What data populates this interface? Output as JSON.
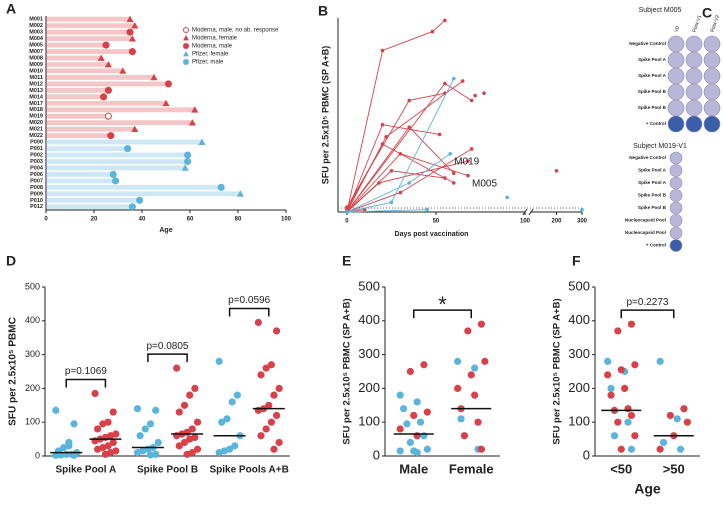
{
  "chart_data": [
    {
      "panel": "A",
      "type": "lollipop",
      "xlabel": "Age",
      "xlim": [
        0,
        100
      ],
      "xticks": [
        0,
        20,
        40,
        60,
        80,
        100
      ],
      "legend": "upper right",
      "categories": [
        "M001",
        "M002",
        "M003",
        "M004",
        "M005",
        "M007",
        "M008",
        "M009",
        "M010",
        "M011",
        "M012",
        "M013",
        "M014",
        "M017",
        "M018",
        "M019",
        "M020",
        "M021",
        "M022",
        "P000",
        "P001",
        "P002",
        "P003",
        "P004",
        "P006",
        "P007",
        "P008",
        "P009",
        "P010",
        "P012"
      ],
      "series": [
        {
          "name": "Moderna, male, no ab. response",
          "color": "#d9414a",
          "marker": "circle-open",
          "values": [
            null,
            null,
            null,
            null,
            null,
            null,
            null,
            null,
            null,
            null,
            null,
            null,
            null,
            null,
            null,
            26,
            null,
            null,
            null,
            null,
            null,
            null,
            null,
            null,
            null,
            null,
            null,
            null,
            null,
            null
          ]
        },
        {
          "name": "Moderna, female",
          "color": "#d9414a",
          "marker": "triangle",
          "values": [
            35,
            37,
            null,
            36,
            null,
            null,
            23,
            26,
            32,
            45,
            null,
            null,
            null,
            50,
            62,
            null,
            61,
            37,
            null,
            null,
            null,
            null,
            null,
            null,
            null,
            null,
            null,
            null,
            null,
            null
          ]
        },
        {
          "name": "Moderna, male",
          "color": "#d9414a",
          "marker": "circle",
          "values": [
            null,
            null,
            35,
            null,
            25,
            36,
            null,
            null,
            null,
            null,
            51,
            26,
            24,
            null,
            null,
            null,
            null,
            null,
            27,
            null,
            null,
            null,
            null,
            null,
            null,
            null,
            null,
            null,
            null,
            null
          ]
        },
        {
          "name": "Pfizer, female",
          "color": "#5ab4dc",
          "marker": "triangle",
          "values": [
            null,
            null,
            null,
            null,
            null,
            null,
            null,
            null,
            null,
            null,
            null,
            null,
            null,
            null,
            null,
            null,
            null,
            null,
            null,
            65,
            null,
            null,
            null,
            58,
            null,
            null,
            null,
            81,
            null,
            null
          ]
        },
        {
          "name": "Pfizer, male",
          "color": "#5ab4dc",
          "marker": "circle",
          "values": [
            null,
            null,
            null,
            null,
            null,
            null,
            null,
            null,
            null,
            null,
            null,
            null,
            null,
            null,
            null,
            null,
            null,
            null,
            null,
            null,
            34,
            59,
            59,
            null,
            28,
            29,
            73,
            null,
            39,
            36
          ]
        }
      ]
    },
    {
      "panel": "B",
      "type": "line",
      "xlabel": "Days post vaccination",
      "ylabel": "SFU per 2.5x10⁵ PBMC (SP A+B)",
      "xlim": [
        -5,
        300
      ],
      "xticks": [
        0,
        50,
        100,
        200,
        300
      ],
      "ylim": [
        0,
        400
      ],
      "series": [
        {
          "color": "#d9414a",
          "x": [
            0,
            20,
            48,
            55
          ],
          "y": [
            0,
            333,
            372,
            395
          ]
        },
        {
          "color": "#d9414a",
          "x": [
            0,
            35,
            55
          ],
          "y": [
            10,
            230,
            245
          ]
        },
        {
          "color": "#d9414a",
          "x": [
            0,
            20,
            52
          ],
          "y": [
            0,
            180,
            160
          ]
        },
        {
          "color": "#d9414a",
          "x": [
            0,
            20,
            60
          ],
          "y": [
            5,
            140,
            60
          ]
        },
        {
          "color": "#d9414a",
          "x": [
            0,
            22,
            65
          ],
          "y": [
            0,
            155,
            270
          ]
        },
        {
          "color": "#d9414a",
          "x": [
            0,
            25,
            55
          ],
          "y": [
            0,
            85,
            70
          ]
        },
        {
          "color": "#d9414a",
          "x": [
            0,
            35,
            60
          ],
          "y": [
            0,
            175,
            80
          ]
        },
        {
          "color": "#d9414a",
          "x": [
            0,
            30,
            70
          ],
          "y": [
            0,
            40,
            130
          ]
        },
        {
          "color": "#d9414a",
          "x": [
            0,
            18,
            68
          ],
          "y": [
            0,
            60,
            105
          ]
        },
        {
          "color": "#d9414a",
          "x": [
            0,
            55,
            70
          ],
          "y": [
            0,
            265,
            230
          ]
        },
        {
          "color": "#d9414a",
          "x": [
            0,
            10
          ],
          "y": [
            0,
            5
          ]
        },
        {
          "color": "#d9414a",
          "x": [
            0,
            30,
            68
          ],
          "y": [
            0,
            120,
            75
          ],
          "label": "M005"
        },
        {
          "color": "#5ab4dc",
          "x": [
            0,
            25,
            60
          ],
          "y": [
            0,
            20,
            275
          ]
        },
        {
          "color": "#5ab4dc",
          "x": [
            0,
            35,
            58
          ],
          "y": [
            0,
            60,
            120
          ],
          "label": "M019"
        },
        {
          "color": "#5ab4dc",
          "x": [
            0,
            45
          ],
          "y": [
            0,
            5
          ]
        },
        {
          "color": "#d9414a",
          "x": [
            200
          ],
          "y": [
            85
          ]
        },
        {
          "color": "#d9414a",
          "x": [
            72
          ],
          "y": [
            240
          ]
        },
        {
          "color": "#d9414a",
          "x": [
            77
          ],
          "y": [
            245
          ]
        },
        {
          "color": "#5ab4dc",
          "x": [
            90
          ],
          "y": [
            30
          ]
        },
        {
          "color": "#5ab4dc",
          "x": [
            300
          ],
          "y": [
            5
          ]
        }
      ]
    },
    {
      "panel": "D",
      "type": "dot",
      "ylabel": "SFU per 2.5x10⁵ PBMC",
      "ylim": [
        0,
        500
      ],
      "yticks": [
        0,
        100,
        200,
        300,
        400,
        500
      ],
      "dodge": true,
      "categories": [
        "Spike Pool A",
        "Spike Pool B",
        "Spike Pools A+B"
      ],
      "p_values": [
        "p=0.1069",
        "p=0.0805",
        "p=0.0596"
      ],
      "series": [
        {
          "color": "#5ab4dc",
          "medians": [
            10,
            25,
            60
          ],
          "values": [
            [
              135,
              95,
              40,
              25,
              15,
              10,
              5,
              5,
              3,
              2,
              2,
              30
            ],
            [
              140,
              135,
              95,
              80,
              60,
              40,
              25,
              20,
              15,
              10,
              5,
              3
            ],
            [
              280,
              180,
              160,
              110,
              100,
              60,
              30,
              20,
              15,
              10
            ]
          ]
        },
        {
          "color": "#d9414a",
          "medians": [
            50,
            65,
            140
          ],
          "values": [
            [
              185,
              130,
              100,
              95,
              80,
              65,
              60,
              55,
              50,
              45,
              40,
              30,
              25,
              20,
              15,
              10,
              5
            ],
            [
              260,
              200,
              180,
              150,
              130,
              100,
              80,
              70,
              65,
              60,
              55,
              50,
              40,
              30,
              20,
              10,
              5
            ],
            [
              395,
              370,
              270,
              260,
              240,
              200,
              180,
              150,
              140,
              135,
              120,
              100,
              80,
              60,
              40,
              20
            ]
          ]
        }
      ]
    },
    {
      "panel": "E",
      "type": "dot",
      "ylabel": "SFU per 2.5x10⁵ PBMC (SP A+B)",
      "ylim": [
        0,
        500
      ],
      "yticks": [
        0,
        100,
        200,
        300,
        400,
        500
      ],
      "dodge": false,
      "categories": [
        "Male",
        "Female"
      ],
      "medians": [
        65,
        140
      ],
      "p_value": "*",
      "series": [
        {
          "color": "#5ab4dc",
          "values": [
            [
              180,
              160,
              140,
              100,
              95,
              60,
              40,
              20,
              15,
              15,
              10
            ],
            [
              280,
              260,
              110,
              20
            ]
          ]
        },
        {
          "color": "#d9414a",
          "values": [
            [
              270,
              250,
              130,
              120,
              80,
              60
            ],
            [
              390,
              370,
              280,
              240,
              200,
              180,
              140,
              100,
              60,
              20
            ]
          ]
        }
      ]
    },
    {
      "panel": "F",
      "type": "dot",
      "ylabel": "SFU per 2.5x10⁵ PBMC (SP A+B)",
      "xlabel": "Age",
      "ylim": [
        0,
        500
      ],
      "yticks": [
        0,
        100,
        200,
        300,
        400,
        500
      ],
      "dodge": false,
      "categories": [
        "<50",
        ">50"
      ],
      "medians": [
        135,
        60
      ],
      "p_value": "p=0.2273",
      "series": [
        {
          "color": "#5ab4dc",
          "values": [
            [
              280,
              250,
              200,
              100,
              60,
              20
            ],
            [
              280,
              110,
              40,
              20
            ]
          ]
        },
        {
          "color": "#d9414a",
          "values": [
            [
              390,
              370,
              270,
              255,
              240,
              200,
              180,
              140,
              135,
              120,
              100,
              60,
              20
            ],
            [
              140,
              120,
              100,
              60,
              20
            ]
          ]
        }
      ]
    }
  ],
  "plate_panel": {
    "panel": "C",
    "plates": [
      {
        "title": "Subject M005",
        "columns": [
          "V0",
          "Post-V1",
          "Post-V2"
        ],
        "rows": [
          "Negative Control",
          "Spike Pool A",
          "Spike Pool A",
          "Spike Pool B",
          "Spike Pool B",
          "+ Control"
        ]
      },
      {
        "title": "Subject M019-V1",
        "rows": [
          "Negative Control",
          "Spike Pool A",
          "Spike Pool A",
          "Spike Pool B",
          "Spike Pool B",
          "Nucleocapsid Pool",
          "Nucleocapsid Pool",
          "+ Control"
        ]
      }
    ]
  }
}
